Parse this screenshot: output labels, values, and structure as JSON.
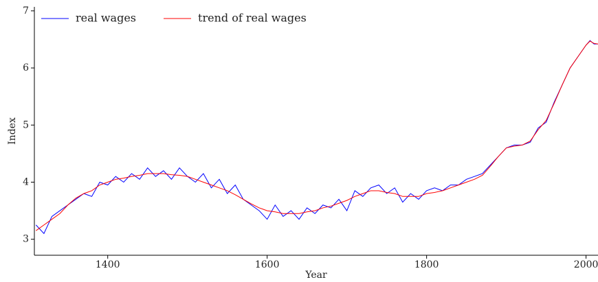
{
  "chart_data": {
    "type": "line",
    "x_label": "Year",
    "y_label": "Index",
    "x": [
      1310,
      1320,
      1330,
      1340,
      1350,
      1360,
      1370,
      1380,
      1390,
      1400,
      1410,
      1420,
      1430,
      1440,
      1450,
      1460,
      1470,
      1480,
      1490,
      1500,
      1510,
      1520,
      1530,
      1540,
      1550,
      1560,
      1570,
      1580,
      1590,
      1600,
      1610,
      1620,
      1630,
      1640,
      1650,
      1660,
      1670,
      1680,
      1690,
      1700,
      1710,
      1720,
      1730,
      1740,
      1750,
      1760,
      1770,
      1780,
      1790,
      1800,
      1810,
      1820,
      1830,
      1840,
      1850,
      1860,
      1870,
      1880,
      1890,
      1900,
      1910,
      1920,
      1930,
      1940,
      1950,
      1960,
      1970,
      1980,
      1990,
      2000,
      2005,
      2010,
      2015
    ],
    "series": [
      {
        "name": "real wages",
        "color": "#0000ff",
        "values": [
          3.25,
          3.1,
          3.4,
          3.5,
          3.6,
          3.7,
          3.8,
          3.75,
          4.0,
          3.95,
          4.1,
          4.0,
          4.15,
          4.05,
          4.25,
          4.1,
          4.2,
          4.05,
          4.25,
          4.1,
          4.0,
          4.15,
          3.9,
          4.05,
          3.8,
          3.95,
          3.7,
          3.6,
          3.5,
          3.35,
          3.6,
          3.4,
          3.5,
          3.35,
          3.55,
          3.45,
          3.6,
          3.55,
          3.7,
          3.5,
          3.85,
          3.75,
          3.9,
          3.95,
          3.8,
          3.9,
          3.65,
          3.8,
          3.7,
          3.85,
          3.9,
          3.85,
          3.95,
          3.95,
          4.05,
          4.1,
          4.15,
          4.3,
          4.45,
          4.6,
          4.65,
          4.65,
          4.7,
          4.95,
          5.05,
          5.4,
          5.7,
          6.0,
          6.2,
          6.4,
          6.48,
          6.42,
          6.42
        ]
      },
      {
        "name": "trend of real wages",
        "color": "#ff0000",
        "values": [
          3.15,
          3.25,
          3.35,
          3.45,
          3.6,
          3.72,
          3.8,
          3.85,
          3.95,
          4.0,
          4.05,
          4.07,
          4.1,
          4.12,
          4.15,
          4.15,
          4.15,
          4.13,
          4.12,
          4.1,
          4.05,
          4.0,
          3.95,
          3.9,
          3.85,
          3.78,
          3.7,
          3.62,
          3.55,
          3.5,
          3.48,
          3.45,
          3.45,
          3.45,
          3.48,
          3.5,
          3.55,
          3.58,
          3.63,
          3.68,
          3.75,
          3.8,
          3.85,
          3.85,
          3.82,
          3.8,
          3.75,
          3.75,
          3.75,
          3.8,
          3.82,
          3.85,
          3.9,
          3.95,
          4.0,
          4.05,
          4.12,
          4.28,
          4.45,
          4.6,
          4.63,
          4.65,
          4.72,
          4.92,
          5.08,
          5.38,
          5.7,
          6.0,
          6.2,
          6.4,
          6.47,
          6.43,
          6.42
        ]
      }
    ],
    "xlim": [
      1308,
      2015
    ],
    "ylim": [
      2.72,
      7.07
    ],
    "xticks": [
      1400,
      1600,
      1800,
      2000
    ],
    "yticks": [
      3,
      4,
      5,
      6,
      7
    ],
    "grid": false,
    "legend": "top-left"
  }
}
